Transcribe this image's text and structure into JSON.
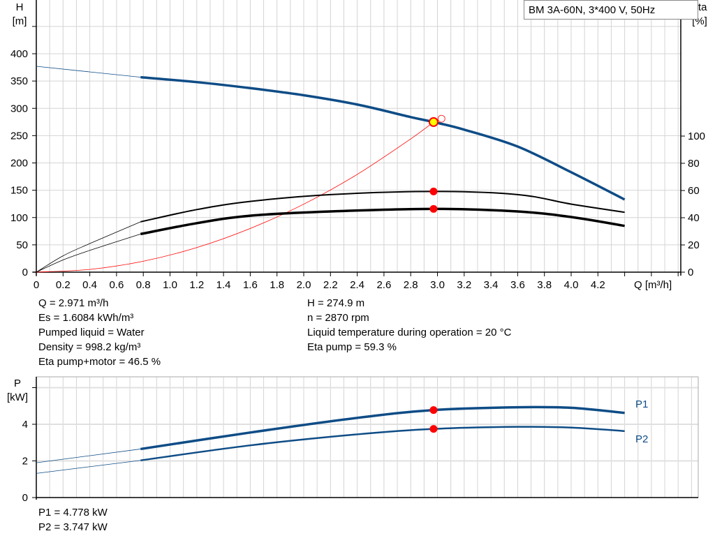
{
  "chart_data": [
    {
      "type": "line",
      "legend_box": "BM 3A-60N, 3*400 V, 50Hz",
      "xlabel": "Q [m³/h]",
      "ylabel_left": [
        "H",
        "[m]"
      ],
      "ylabel_right": [
        "eta",
        "[%]"
      ],
      "xlim": [
        0,
        4.8
      ],
      "ylim_left": [
        0,
        500
      ],
      "ylim_right": [
        0,
        200
      ],
      "x_ticks": [
        "0",
        "0.2",
        "0.4",
        "0.6",
        "0.8",
        "1.0",
        "1.2",
        "1.4",
        "1.6",
        "1.8",
        "2.0",
        "2.2",
        "2.4",
        "2.6",
        "2.8",
        "3.0",
        "3.2",
        "3.4",
        "3.6",
        "3.8",
        "4.0",
        "4.2"
      ],
      "y_ticks_left": [
        "0",
        "50",
        "100",
        "150",
        "200",
        "250",
        "300",
        "350",
        "400"
      ],
      "y_ticks_right": [
        "0",
        "20",
        "40",
        "60",
        "80",
        "100"
      ],
      "grid": true,
      "series": [
        {
          "id": "H",
          "axis": "left",
          "color": "#0e4c86",
          "x": [
            0,
            0.78,
            1.2,
            1.6,
            2.0,
            2.4,
            2.8,
            2.971,
            3.2,
            3.6,
            4.0,
            4.4
          ],
          "y": [
            377,
            357,
            348,
            337,
            324,
            307,
            284,
            274.9,
            261,
            230,
            183,
            133
          ],
          "thin_until": 0.78
        },
        {
          "id": "eta_pump",
          "axis": "right",
          "color": "#000000",
          "x": [
            0,
            0.2,
            0.4,
            0.78,
            1.2,
            1.6,
            2.2,
            2.971,
            3.6,
            4.0,
            4.4
          ],
          "y": [
            0,
            12,
            21,
            37,
            46,
            52,
            57,
            59.3,
            57,
            50,
            44
          ],
          "thin_until": 0.78
        },
        {
          "id": "eta_pump_motor",
          "axis": "right",
          "color": "#000000",
          "x": [
            0,
            0.2,
            0.4,
            0.78,
            1.2,
            1.6,
            2.2,
            2.971,
            3.6,
            4.0,
            4.4
          ],
          "y": [
            0,
            9,
            16,
            28,
            36,
            41.5,
            44.6,
            46.5,
            44.6,
            40.5,
            34
          ],
          "thin_until": 0.78
        },
        {
          "id": "system_curve",
          "axis": "left",
          "color": "#ff0000",
          "x": [
            0,
            0.4,
            0.8,
            1.2,
            1.6,
            2.0,
            2.4,
            2.8,
            2.971
          ],
          "y": [
            0,
            5,
            20,
            45,
            80,
            124.5,
            179,
            244,
            274.9
          ]
        }
      ],
      "duty_points": [
        {
          "x": 2.971,
          "y": 274.9,
          "axis": "left",
          "style": "yellow"
        },
        {
          "x": 2.971,
          "y": 59.3,
          "axis": "right",
          "style": "red"
        },
        {
          "x": 2.971,
          "y": 46.5,
          "axis": "right",
          "style": "red"
        }
      ]
    },
    {
      "type": "line",
      "ylabel_left": [
        "P",
        "[kW]"
      ],
      "xlim": [
        0,
        4.8
      ],
      "ylim": [
        0,
        6.5
      ],
      "y_ticks": [
        "0",
        "2",
        "4"
      ],
      "grid": true,
      "series": [
        {
          "name": "P1",
          "color": "#0e4c86",
          "x": [
            0,
            0.78,
            1.6,
            2.4,
            2.971,
            3.6,
            4.0,
            4.4
          ],
          "y": [
            1.9,
            2.65,
            3.55,
            4.35,
            4.778,
            4.93,
            4.9,
            4.62
          ],
          "thin_until": 0.78
        },
        {
          "name": "P2",
          "color": "#0e4c86",
          "x": [
            0,
            0.78,
            1.6,
            2.4,
            2.971,
            3.6,
            4.0,
            4.4
          ],
          "y": [
            1.32,
            2.03,
            2.85,
            3.45,
            3.747,
            3.86,
            3.82,
            3.63
          ],
          "thin_until": 0.78
        }
      ],
      "duty_points": [
        {
          "x": 2.971,
          "y": 4.778
        },
        {
          "x": 2.971,
          "y": 3.747
        }
      ]
    }
  ],
  "info_left": [
    "Q = 2.971 m³/h",
    "Es = 1.6084 kWh/m³",
    "Pumped liquid = Water",
    "Density = 998.2 kg/m³",
    "Eta pump+motor = 46.5 %"
  ],
  "info_right": [
    "H = 274.9 m",
    "n = 2870 rpm",
    "Liquid temperature during operation = 20 °C",
    "Eta pump = 59.3 %"
  ],
  "power_info": [
    "P1 = 4.778 kW",
    "P2 = 3.747 kW"
  ]
}
